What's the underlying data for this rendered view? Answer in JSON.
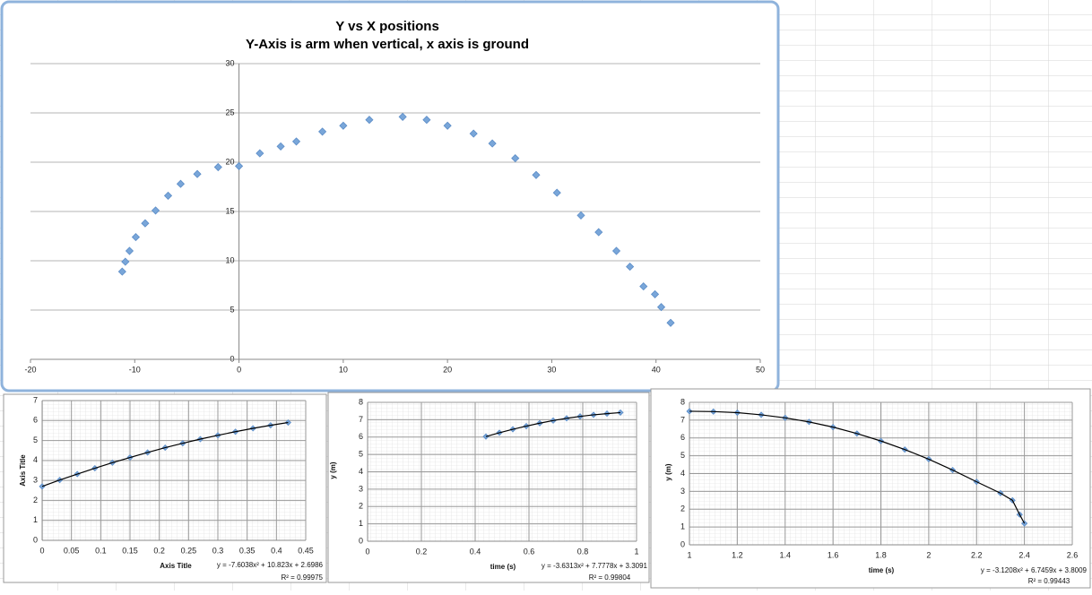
{
  "chart_data": [
    {
      "type": "scatter",
      "title": "Y vs X positions",
      "subtitle": "Y-Axis is arm when vertical, x axis is ground",
      "x": [
        -11.2,
        -10.9,
        -10.5,
        -9.9,
        -9.0,
        -8.0,
        -6.8,
        -5.6,
        -4.0,
        -2.0,
        0,
        2.0,
        4.0,
        5.5,
        8.0,
        10.0,
        12.5,
        15.7,
        18.0,
        20.0,
        22.5,
        24.3,
        26.5,
        28.5,
        30.5,
        32.8,
        34.5,
        36.2,
        37.5,
        38.8,
        39.9,
        40.5,
        41.4
      ],
      "values": [
        8.9,
        9.9,
        11.0,
        12.4,
        13.8,
        15.1,
        16.6,
        17.8,
        18.8,
        19.5,
        19.6,
        20.9,
        21.6,
        22.1,
        23.1,
        23.7,
        24.3,
        24.6,
        24.3,
        23.7,
        22.9,
        21.9,
        20.4,
        18.7,
        16.9,
        14.6,
        12.9,
        11.0,
        9.4,
        7.4,
        6.6,
        5.3,
        3.7
      ],
      "color": "#79a6d9",
      "xlim": [
        -20,
        50
      ],
      "xticks": [
        -20,
        -10,
        0,
        10,
        20,
        30,
        40,
        50
      ],
      "ylim": [
        0,
        30
      ],
      "yticks": [
        0,
        5,
        10,
        15,
        20,
        25,
        30
      ],
      "grid": true
    },
    {
      "type": "scatter",
      "xlabel": "Axis Title",
      "ylabel": "Axis Title",
      "trendline_equation": "y = -7.6038x² + 10.823x + 2.6986",
      "trendline_r2": "R² = 0.99975",
      "x": [
        0,
        0.03,
        0.06,
        0.09,
        0.12,
        0.15,
        0.18,
        0.21,
        0.24,
        0.27,
        0.3,
        0.33,
        0.36,
        0.39,
        0.42
      ],
      "values": [
        2.7,
        3.02,
        3.32,
        3.61,
        3.89,
        4.15,
        4.4,
        4.64,
        4.86,
        5.07,
        5.26,
        5.44,
        5.61,
        5.76,
        5.9
      ],
      "color": "#79a6d9",
      "trendline": true,
      "xlim": [
        0,
        0.45
      ],
      "xticks": [
        0,
        0.05,
        0.1,
        0.15,
        0.2,
        0.25,
        0.3,
        0.35,
        0.4,
        0.45
      ],
      "ylim": [
        0,
        7
      ],
      "yticks": [
        0,
        1,
        2,
        3,
        4,
        5,
        6,
        7
      ],
      "grid": true
    },
    {
      "type": "scatter",
      "xlabel": "time (s)",
      "ylabel": "y (m)",
      "trendline_equation": "y = -3.6313x² + 7.7778x + 3.3091",
      "trendline_r2": "R² = 0.99804",
      "x": [
        0.44,
        0.49,
        0.54,
        0.59,
        0.64,
        0.69,
        0.74,
        0.79,
        0.84,
        0.89,
        0.94
      ],
      "values": [
        6.03,
        6.25,
        6.45,
        6.63,
        6.8,
        6.95,
        7.08,
        7.19,
        7.28,
        7.35,
        7.41
      ],
      "color": "#79a6d9",
      "trendline": true,
      "xlim": [
        0,
        1
      ],
      "xticks": [
        0,
        0.2,
        0.4,
        0.6,
        0.8,
        1
      ],
      "ylim": [
        0,
        8
      ],
      "yticks": [
        0,
        1,
        2,
        3,
        4,
        5,
        6,
        7,
        8
      ],
      "grid": true
    },
    {
      "type": "scatter",
      "xlabel": "time (s)",
      "ylabel": "y (m)",
      "trendline_equation": "y = -3.1208x² + 6.7459x + 3.8009",
      "trendline_r2": "R² = 0.99443",
      "x": [
        1.0,
        1.1,
        1.2,
        1.3,
        1.4,
        1.5,
        1.6,
        1.7,
        1.8,
        1.9,
        2.0,
        2.1,
        2.2,
        2.3,
        2.35,
        2.38,
        2.4
      ],
      "values": [
        7.5,
        7.48,
        7.42,
        7.3,
        7.13,
        6.9,
        6.61,
        6.25,
        5.83,
        5.35,
        4.81,
        4.2,
        3.54,
        2.9,
        2.5,
        1.7,
        1.2
      ],
      "color": "#79a6d9",
      "trendline": true,
      "xlim": [
        1,
        2.6
      ],
      "xticks": [
        1,
        1.2,
        1.4,
        1.6,
        1.8,
        2,
        2.2,
        2.4,
        2.6
      ],
      "ylim": [
        0,
        8
      ],
      "yticks": [
        0,
        1,
        2,
        3,
        4,
        5,
        6,
        7,
        8
      ],
      "grid": true
    }
  ]
}
